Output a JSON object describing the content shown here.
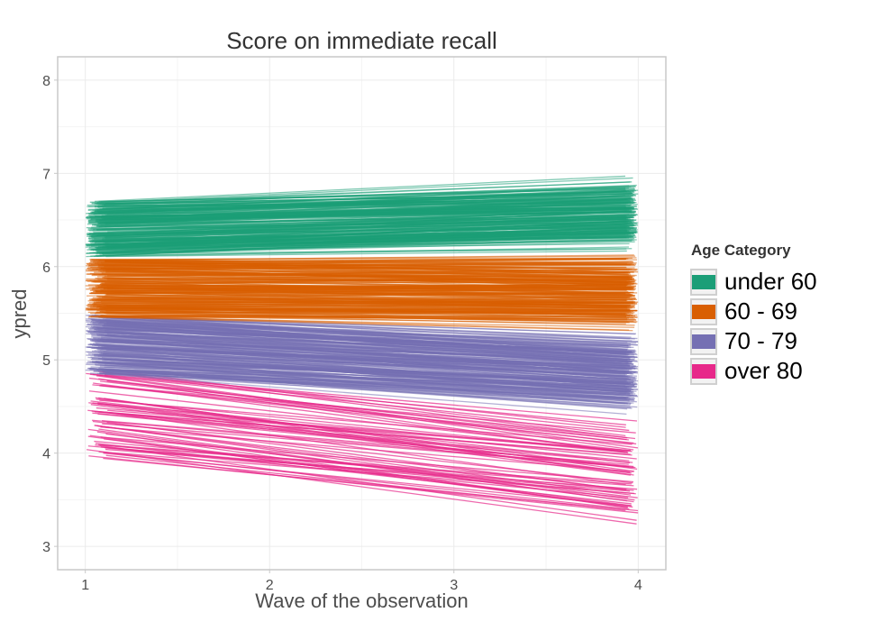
{
  "chart_data": {
    "type": "line",
    "title": "Score on immediate recall",
    "xlabel": "Wave of the observation",
    "ylabel": "ypred",
    "xlim": [
      0.85,
      4.15
    ],
    "ylim": [
      2.75,
      8.25
    ],
    "x_ticks": [
      "1",
      "2",
      "3",
      "4"
    ],
    "y_ticks": [
      "3",
      "4",
      "5",
      "6",
      "7",
      "8"
    ],
    "grid": true,
    "legend": {
      "title": "Age Category",
      "placement": "right"
    },
    "series": [
      {
        "name": "under 60",
        "color": "#1B9E77",
        "start_range": [
          6.1,
          6.7
        ],
        "end_range": [
          6.15,
          6.98
        ]
      },
      {
        "name": "60 - 69",
        "color": "#D95F02",
        "start_range": [
          5.45,
          6.08
        ],
        "end_range": [
          5.3,
          6.15
        ]
      },
      {
        "name": "70 - 79",
        "color": "#7570B3",
        "start_range": [
          4.85,
          5.48
        ],
        "end_range": [
          4.4,
          5.3
        ]
      },
      {
        "name": "over 80",
        "color": "#E7298A",
        "start_range": [
          3.92,
          4.9
        ],
        "end_range": [
          3.12,
          4.45
        ]
      }
    ]
  }
}
